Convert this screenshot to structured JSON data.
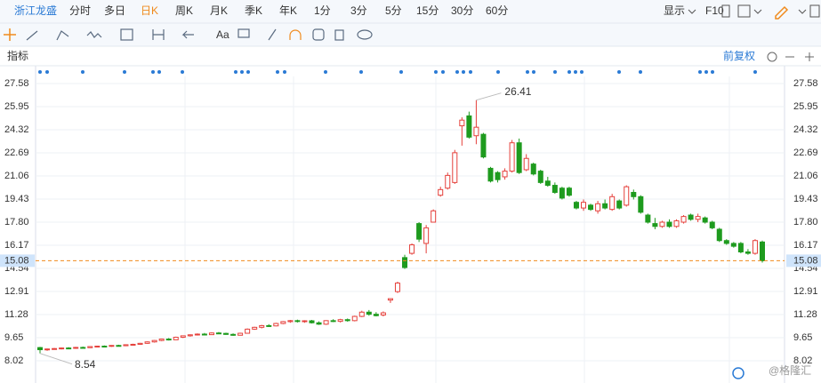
{
  "toolbar": {
    "stock": "浙江龙盛",
    "periods": [
      "分时",
      "多日",
      "日K",
      "周K",
      "月K",
      "季K",
      "年K",
      "1分",
      "3分",
      "5分",
      "15分",
      "30分",
      "60分"
    ],
    "display": "显示",
    "f10": "F10",
    "text_tool": "Aa"
  },
  "indicator_label": "指标",
  "adjust_label": "前复权",
  "watermark": "@格隆汇",
  "chart_data": {
    "type": "candlestick",
    "up_color": "#e5403b",
    "down_color": "#1e9b1e",
    "grid": true,
    "ylim": [
      6.45,
      28.21
    ],
    "yticks": [
      27.58,
      25.95,
      24.32,
      22.69,
      21.06,
      19.43,
      {
        "value": 17.8,
        "label": "17.80"
      },
      16.17,
      14.54,
      12.91,
      11.28,
      9.65,
      8.02
    ],
    "last_price": 15.08,
    "high_annotation": 26.41,
    "low_annotation": 8.54,
    "open": [
      8.95,
      8.8,
      8.85,
      8.88,
      8.92,
      8.9,
      8.96,
      8.94,
      9.02,
      9.05,
      9.04,
      9.1,
      9.08,
      9.15,
      9.18,
      9.25,
      9.35,
      9.45,
      9.55,
      9.5,
      9.68,
      9.78,
      9.85,
      9.9,
      9.86,
      9.98,
      9.95,
      9.88,
      9.82,
      9.96,
      10.25,
      10.38,
      10.5,
      10.48,
      10.65,
      10.78,
      10.85,
      10.8,
      10.84,
      10.7,
      10.6,
      10.85,
      10.8,
      10.92,
      10.85,
      11.15,
      11.45,
      11.3,
      11.25,
      12.3,
      12.9,
      15.3,
      15.6,
      17.7,
      16.3,
      17.8,
      19.7,
      20.2,
      20.6,
      24.6,
      25.3,
      23.9,
      24.0,
      21.6,
      21.3,
      21.0,
      21.4,
      23.4,
      21.5,
      21.9,
      21.4,
      20.7,
      20.4,
      20.2,
      20.2,
      19.2,
      18.8,
      19.0,
      18.6,
      19.1,
      18.7,
      19.3,
      19.0,
      19.9,
      19.6,
      18.3,
      17.7,
      17.5,
      17.8,
      17.5,
      17.8,
      18.3,
      18.0,
      18.1,
      17.8,
      17.3,
      16.5,
      16.3,
      16.3,
      15.7,
      15.6,
      16.4
    ],
    "high": [
      9.0,
      8.88,
      8.92,
      8.95,
      8.98,
      9.0,
      9.02,
      9.05,
      9.08,
      9.1,
      9.12,
      9.15,
      9.18,
      9.22,
      9.28,
      9.38,
      9.48,
      9.58,
      9.62,
      9.72,
      9.8,
      9.88,
      9.95,
      9.98,
      10.02,
      10.05,
      10.0,
      9.95,
      10.0,
      10.3,
      10.42,
      10.55,
      10.6,
      10.7,
      10.82,
      10.9,
      10.92,
      10.88,
      10.9,
      10.8,
      10.88,
      10.95,
      10.98,
      11.0,
      11.2,
      11.55,
      11.6,
      11.45,
      11.5,
      12.4,
      13.6,
      15.5,
      16.3,
      17.8,
      17.6,
      18.7,
      20.3,
      21.3,
      22.9,
      25.2,
      25.6,
      26.41,
      24.1,
      21.7,
      21.4,
      21.6,
      23.6,
      23.7,
      22.6,
      22.0,
      21.5,
      21.0,
      20.6,
      20.3,
      20.3,
      19.3,
      19.4,
      19.1,
      19.3,
      19.4,
      19.8,
      19.4,
      20.4,
      20.1,
      19.7,
      18.4,
      18.1,
      17.9,
      18.0,
      18.0,
      18.3,
      18.4,
      18.4,
      18.2,
      17.9,
      17.4,
      16.6,
      16.4,
      16.4,
      15.9,
      16.6,
      16.5
    ],
    "low": [
      8.54,
      8.72,
      8.8,
      8.82,
      8.85,
      8.86,
      8.9,
      8.92,
      8.98,
      9.0,
      9.0,
      9.05,
      9.05,
      9.1,
      9.15,
      9.22,
      9.3,
      9.4,
      9.45,
      9.48,
      9.62,
      9.72,
      9.8,
      9.82,
      9.84,
      9.9,
      9.85,
      9.78,
      9.8,
      9.94,
      10.2,
      10.3,
      10.4,
      10.45,
      10.6,
      10.7,
      10.72,
      10.7,
      10.65,
      10.55,
      10.55,
      10.75,
      10.72,
      10.78,
      10.8,
      11.1,
      11.2,
      11.15,
      11.15,
      12.1,
      12.8,
      14.5,
      15.5,
      16.4,
      15.6,
      17.8,
      19.6,
      20.1,
      20.5,
      23.2,
      23.7,
      23.3,
      22.3,
      20.6,
      20.6,
      20.8,
      21.3,
      21.2,
      21.4,
      21.1,
      20.5,
      20.3,
      19.8,
      19.4,
      19.6,
      18.7,
      18.6,
      18.6,
      18.4,
      18.7,
      18.6,
      18.7,
      18.9,
      19.4,
      18.4,
      17.7,
      17.3,
      17.4,
      17.4,
      17.4,
      17.7,
      17.9,
      17.8,
      17.7,
      17.3,
      16.4,
      16.2,
      16.0,
      15.6,
      15.5,
      15.5,
      14.95
    ],
    "close": [
      8.8,
      8.85,
      8.88,
      8.92,
      8.9,
      8.96,
      8.94,
      9.02,
      9.05,
      9.04,
      9.1,
      9.08,
      9.15,
      9.18,
      9.25,
      9.35,
      9.45,
      9.55,
      9.5,
      9.68,
      9.78,
      9.85,
      9.9,
      9.86,
      9.98,
      9.95,
      9.88,
      9.82,
      9.96,
      10.25,
      10.38,
      10.5,
      10.48,
      10.65,
      10.78,
      10.85,
      10.8,
      10.84,
      10.7,
      10.6,
      10.85,
      10.8,
      10.92,
      10.85,
      11.15,
      11.45,
      11.3,
      11.2,
      11.4,
      12.4,
      13.5,
      14.6,
      16.2,
      16.6,
      17.4,
      18.6,
      20.1,
      21.1,
      22.7,
      25.0,
      23.8,
      24.5,
      22.4,
      20.7,
      20.8,
      21.4,
      23.4,
      21.3,
      22.3,
      21.2,
      20.6,
      20.4,
      19.9,
      19.5,
      19.7,
      18.8,
      19.2,
      18.7,
      19.1,
      18.8,
      19.6,
      18.8,
      20.3,
      19.6,
      18.5,
      17.8,
      17.5,
      17.8,
      17.5,
      17.9,
      18.2,
      18.0,
      18.2,
      17.8,
      17.4,
      16.5,
      16.3,
      16.1,
      15.7,
      15.6,
      16.5,
      15.08
    ]
  }
}
